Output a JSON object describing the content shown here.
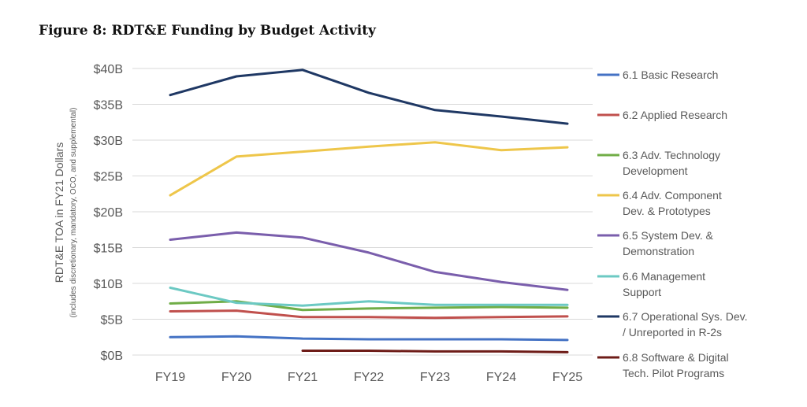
{
  "figure_title": "Figure 8: RDT&E Funding by Budget Activity",
  "chart_data": {
    "type": "line",
    "title": "RDT&E Funding by Budget Activity",
    "categories": [
      "FY19",
      "FY20",
      "FY21",
      "FY22",
      "FY23",
      "FY24",
      "FY25"
    ],
    "ylabel": "RDT&E TOA in FY21 Dollars",
    "ylabel_sub": "(includes discretionary, mandatory, OCO, and supplemental)",
    "ylim": [
      0,
      40
    ],
    "yticks": [
      0,
      5,
      10,
      15,
      20,
      25,
      30,
      35,
      40
    ],
    "ytick_labels": [
      "$0B",
      "$5B",
      "$10B",
      "$15B",
      "$20B",
      "$25B",
      "$30B",
      "$35B",
      "$40B"
    ],
    "grid": true,
    "legend_position": "right",
    "series": [
      {
        "name": "6.1 Basic Research",
        "legend_lines": [
          "6.1 Basic Research"
        ],
        "color": "#4472c4",
        "values": [
          2.5,
          2.6,
          2.3,
          2.2,
          2.2,
          2.2,
          2.1
        ]
      },
      {
        "name": "6.2 Applied Research",
        "legend_lines": [
          "6.2 Applied Research"
        ],
        "color": "#c0504d",
        "values": [
          6.1,
          6.2,
          5.3,
          5.3,
          5.2,
          5.3,
          5.4
        ]
      },
      {
        "name": "6.3 Adv. Technology Development",
        "legend_lines": [
          "6.3 Adv. Technology",
          "Development"
        ],
        "color": "#70ad47",
        "values": [
          7.2,
          7.5,
          6.3,
          6.5,
          6.6,
          6.7,
          6.6
        ]
      },
      {
        "name": "6.4 Adv. Component Dev. & Prototypes",
        "legend_lines": [
          "6.4 Adv. Component",
          "Dev. & Prototypes"
        ],
        "color": "#eec64a",
        "values": [
          22.3,
          27.7,
          28.4,
          29.1,
          29.7,
          28.6,
          29.0
        ]
      },
      {
        "name": "6.5 System Dev. & Demonstration",
        "legend_lines": [
          "6.5 System Dev. &",
          "Demonstration"
        ],
        "color": "#7a5eac",
        "values": [
          16.1,
          17.1,
          16.4,
          14.3,
          11.6,
          10.2,
          9.1
        ]
      },
      {
        "name": "6.6 Management Support",
        "legend_lines": [
          "6.6 Management",
          "Support"
        ],
        "color": "#6cc9c3",
        "values": [
          9.4,
          7.3,
          6.9,
          7.5,
          7.0,
          7.0,
          7.0
        ]
      },
      {
        "name": "6.7 Operational Sys. Dev. / Unreported in R-2s",
        "legend_lines": [
          "6.7 Operational Sys. Dev.",
          "/ Unreported in R-2s"
        ],
        "color": "#1f3864",
        "values": [
          36.3,
          38.9,
          39.8,
          36.6,
          34.2,
          33.3,
          32.3
        ]
      },
      {
        "name": "6.8 Software & Digital Tech. Pilot Programs",
        "legend_lines": [
          "6.8 Software & Digital",
          "Tech. Pilot Programs"
        ],
        "color": "#6e1c18",
        "values": [
          null,
          null,
          0.6,
          0.6,
          0.5,
          0.5,
          0.4
        ]
      }
    ]
  }
}
